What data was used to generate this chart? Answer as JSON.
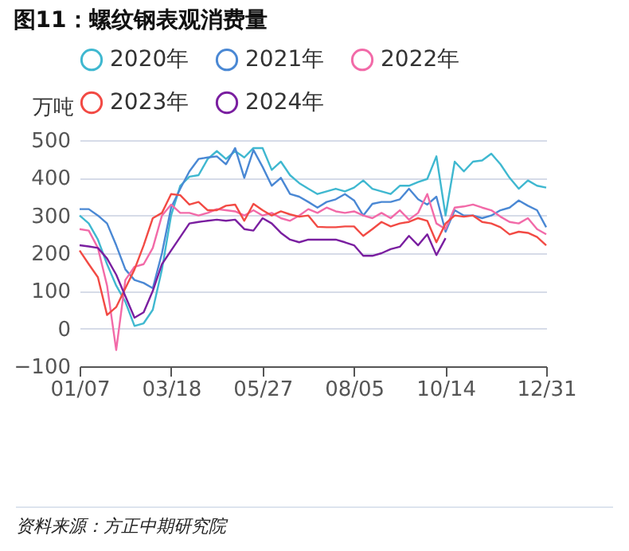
{
  "chart_data": {
    "type": "line",
    "title": "图11：螺纹钢表观消费量",
    "ylabel": "万吨",
    "categories": [
      "01/07",
      null,
      null,
      null,
      null,
      null,
      null,
      null,
      null,
      null,
      "03/18",
      null,
      null,
      null,
      null,
      null,
      null,
      null,
      null,
      null,
      "05/27",
      null,
      null,
      null,
      null,
      null,
      null,
      null,
      null,
      null,
      "08/05",
      null,
      null,
      null,
      null,
      null,
      null,
      null,
      null,
      null,
      "10/14",
      null,
      null,
      null,
      null,
      null,
      null,
      null,
      null,
      null,
      null,
      "12/31"
    ],
    "series": [
      {
        "name": "2020年",
        "color": "#3fb8d0",
        "values": [
          300,
          279,
          236,
          171,
          114,
          71,
          7,
          14,
          50,
          157,
          300,
          379,
          403,
          407,
          450,
          471,
          450,
          471,
          454,
          479,
          479,
          421,
          443,
          407,
          386,
          371,
          357,
          364,
          371,
          364,
          374,
          393,
          371,
          364,
          357,
          379,
          379,
          389,
          397,
          457,
          300,
          443,
          417,
          443,
          446,
          464,
          436,
          400,
          371,
          393,
          379,
          374
        ]
      },
      {
        "name": "2021年",
        "color": "#4a88d4",
        "values": [
          317,
          317,
          300,
          279,
          221,
          157,
          129,
          121,
          107,
          200,
          321,
          371,
          417,
          450,
          454,
          457,
          436,
          479,
          400,
          474,
          429,
          379,
          400,
          357,
          350,
          336,
          321,
          336,
          343,
          357,
          340,
          300,
          331,
          336,
          336,
          343,
          371,
          343,
          329,
          350,
          257,
          314,
          300,
          300,
          293,
          300,
          314,
          321,
          340,
          326,
          314,
          269
        ]
      },
      {
        "name": "2022年",
        "color": "#f26aa8",
        "values": [
          264,
          260,
          214,
          114,
          -57,
          129,
          164,
          171,
          214,
          300,
          329,
          307,
          307,
          300,
          307,
          317,
          314,
          311,
          300,
          314,
          300,
          307,
          293,
          286,
          300,
          317,
          307,
          321,
          311,
          307,
          311,
          300,
          293,
          307,
          293,
          314,
          289,
          307,
          357,
          279,
          264,
          321,
          324,
          329,
          321,
          314,
          297,
          283,
          279,
          293,
          264,
          250
        ]
      },
      {
        "name": "2023年",
        "color": "#f24a44",
        "values": [
          207,
          171,
          136,
          36,
          57,
          107,
          157,
          221,
          293,
          307,
          357,
          354,
          329,
          336,
          314,
          314,
          326,
          329,
          286,
          331,
          314,
          300,
          311,
          303,
          297,
          300,
          270,
          269,
          269,
          271,
          271,
          246,
          264,
          283,
          271,
          279,
          283,
          293,
          286,
          229,
          279,
          300,
          297,
          300,
          283,
          279,
          269,
          250,
          257,
          254,
          243,
          221
        ]
      },
      {
        "name": "2024年",
        "color": "#7a1fa0",
        "values": [
          221,
          218,
          214,
          186,
          143,
          86,
          29,
          43,
          100,
          171,
          207,
          243,
          279,
          283,
          286,
          289,
          286,
          289,
          264,
          260,
          293,
          279,
          254,
          236,
          229,
          236,
          236,
          236,
          236,
          229,
          221,
          193,
          193,
          200,
          211,
          217,
          246,
          221,
          250,
          195,
          240,
          null,
          null,
          null,
          null,
          null,
          null,
          null,
          null,
          null,
          null,
          null
        ]
      }
    ],
    "ylim": [
      -100,
      500
    ],
    "yticks": [
      -100,
      0,
      100,
      200,
      300,
      400,
      500
    ],
    "grid": "y",
    "legend": "top",
    "marker": "none",
    "annotations": [
      "资料来源：方正中期研究院"
    ]
  }
}
